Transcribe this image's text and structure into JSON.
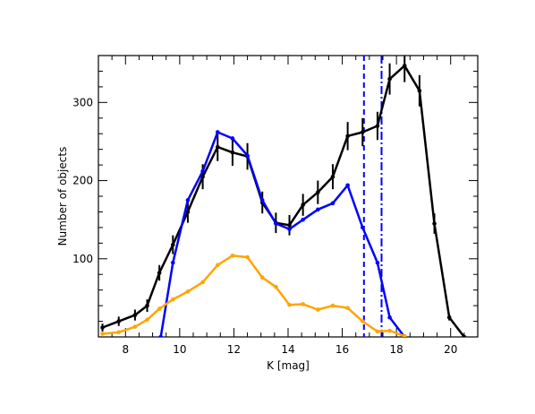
{
  "chart_data": {
    "type": "line",
    "xlabel": "K [mag]",
    "ylabel": "Number of objects",
    "xlim": [
      7.0,
      21.0
    ],
    "ylim": [
      0,
      360
    ],
    "xticks": [
      8,
      10,
      12,
      14,
      16,
      18,
      20
    ],
    "yticks": [
      100,
      200,
      300
    ],
    "grid": false,
    "series": [
      {
        "color": "#000000",
        "markers": true,
        "x": [
          7.15,
          7.75,
          8.35,
          8.8,
          9.25,
          9.75,
          10.3,
          10.85,
          11.4,
          11.95,
          12.5,
          13.05,
          13.55,
          14.05,
          14.55,
          15.1,
          15.65,
          16.2,
          16.75,
          17.3,
          17.75,
          18.3,
          18.85,
          19.4,
          19.95,
          20.5
        ],
        "y": [
          12,
          20,
          28,
          40,
          82,
          118,
          160,
          205,
          243,
          236,
          231,
          172,
          146,
          143,
          169,
          185,
          205,
          257,
          262,
          270,
          330,
          347,
          315,
          145,
          25,
          0
        ],
        "errors": [
          5,
          6,
          7,
          8,
          10,
          12,
          14,
          16,
          18,
          17,
          17,
          14,
          13,
          13,
          14,
          15,
          16,
          18,
          18,
          18,
          20,
          21,
          20,
          13,
          4,
          0
        ]
      },
      {
        "color": "#0000ff",
        "markers": true,
        "x": [
          9.3,
          9.75,
          10.3,
          10.85,
          11.4,
          11.95,
          12.5,
          13.05,
          13.55,
          14.05,
          14.55,
          15.1,
          15.65,
          16.2,
          16.75,
          17.3,
          17.75,
          18.3
        ],
        "y": [
          0,
          95,
          175,
          212,
          262,
          254,
          232,
          175,
          145,
          138,
          150,
          163,
          171,
          194,
          140,
          95,
          25,
          0
        ]
      },
      {
        "color": "#ffa500",
        "markers": true,
        "x": [
          7.15,
          7.75,
          8.35,
          8.8,
          9.25,
          9.75,
          10.3,
          10.85,
          11.4,
          11.95,
          12.5,
          13.05,
          13.55,
          14.05,
          14.55,
          15.1,
          15.65,
          16.2,
          16.75,
          17.3,
          17.75,
          18.3
        ],
        "y": [
          4,
          6,
          13,
          22,
          36,
          48,
          58,
          70,
          92,
          104,
          102,
          76,
          64,
          41,
          42,
          35,
          40,
          37,
          20,
          7,
          8,
          1
        ]
      }
    ],
    "vlines": [
      {
        "x": 16.8,
        "style": "dashed",
        "color": "#0000ff"
      },
      {
        "x": 17.45,
        "style": "dashdot",
        "color": "#0000ff"
      }
    ]
  }
}
